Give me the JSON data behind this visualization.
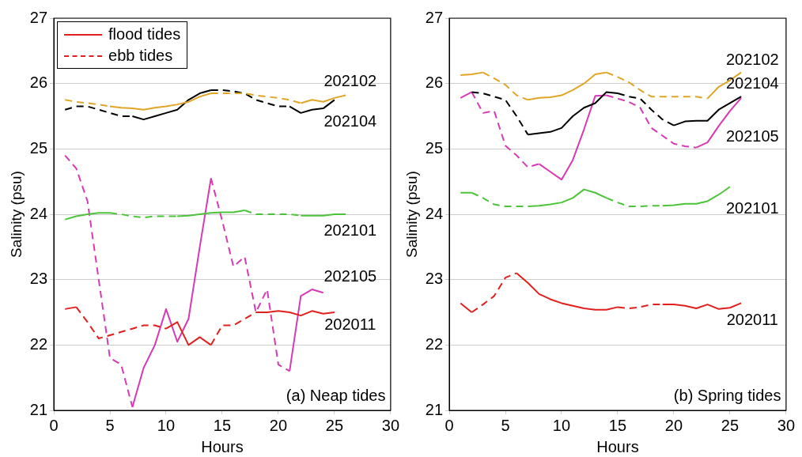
{
  "chart_data": [
    {
      "type": "line",
      "xlabel": "Hours",
      "ylabel": "Salinity (psu)",
      "xlim": [
        0,
        30
      ],
      "xticks": [
        0,
        5,
        10,
        15,
        20,
        25,
        30
      ],
      "ylim": [
        21,
        27
      ],
      "yticks": [
        21,
        22,
        23,
        24,
        25,
        26,
        27
      ],
      "grid": "y",
      "legend": "top left",
      "marker": "none",
      "annotations": [
        "(a) Neap tides",
        "202102",
        "202104",
        "202101",
        "202105",
        "202011"
      ],
      "series": [
        {
          "name": "flood tides",
          "color": "#e0201e",
          "line_style": "solid",
          "x": [
            1,
            2
          ],
          "values": [
            22.55,
            22.58
          ]
        },
        {
          "name": "ebb tides",
          "color": "#e0201e",
          "line_style": "dashed",
          "x": [
            2,
            3,
            4,
            5,
            6,
            7,
            8,
            9,
            10
          ],
          "values": [
            22.58,
            22.35,
            22.1,
            22.15,
            22.2,
            22.25,
            22.3,
            22.3,
            22.25
          ]
        },
        {
          "color": "#e0201e",
          "line_style": "solid",
          "x": [
            10,
            11,
            12,
            13,
            14
          ],
          "values": [
            22.25,
            22.35,
            22.0,
            22.12,
            22.0
          ]
        },
        {
          "color": "#e0201e",
          "line_style": "dashed",
          "x": [
            14,
            15,
            16,
            17,
            18
          ],
          "values": [
            22.0,
            22.3,
            22.3,
            22.4,
            22.5
          ]
        },
        {
          "color": "#e0201e",
          "line_style": "solid",
          "x": [
            18,
            19,
            20,
            21,
            22,
            23,
            24,
            25
          ],
          "values": [
            22.5,
            22.5,
            22.52,
            22.5,
            22.45,
            22.52,
            22.48,
            22.5
          ]
        },
        {
          "color": "#e0a526",
          "line_style": "dashed",
          "x": [
            1,
            2,
            3,
            4,
            5
          ],
          "values": [
            25.75,
            25.72,
            25.7,
            25.68,
            25.65
          ]
        },
        {
          "color": "#e0a526",
          "line_style": "solid",
          "x": [
            5,
            6,
            7,
            8,
            9,
            10,
            11,
            12,
            13,
            14
          ],
          "values": [
            25.65,
            25.63,
            25.62,
            25.6,
            25.63,
            25.65,
            25.68,
            25.72,
            25.8,
            25.85
          ]
        },
        {
          "color": "#e0a526",
          "line_style": "dashed",
          "x": [
            14,
            15,
            16,
            17,
            18,
            19,
            20,
            21,
            22
          ],
          "values": [
            25.85,
            25.85,
            25.85,
            25.85,
            25.82,
            25.8,
            25.78,
            25.75,
            25.7
          ]
        },
        {
          "color": "#e0a526",
          "line_style": "solid",
          "x": [
            22,
            23,
            24,
            25,
            26
          ],
          "values": [
            25.7,
            25.75,
            25.72,
            25.78,
            25.82
          ]
        },
        {
          "color": "#000000",
          "line_style": "dashed",
          "x": [
            1,
            2,
            3,
            4,
            5,
            6,
            7
          ],
          "values": [
            25.6,
            25.65,
            25.65,
            25.6,
            25.55,
            25.5,
            25.5
          ]
        },
        {
          "color": "#000000",
          "line_style": "solid",
          "x": [
            7,
            8,
            9,
            10,
            11,
            12,
            13,
            14
          ],
          "values": [
            25.5,
            25.45,
            25.5,
            25.55,
            25.6,
            25.75,
            25.85,
            25.9
          ]
        },
        {
          "color": "#000000",
          "line_style": "dashed",
          "x": [
            14,
            15,
            16,
            17,
            18,
            19,
            20,
            21
          ],
          "values": [
            25.9,
            25.9,
            25.88,
            25.85,
            25.75,
            25.7,
            25.65,
            25.65
          ]
        },
        {
          "color": "#000000",
          "line_style": "solid",
          "x": [
            21,
            22,
            23,
            24,
            25
          ],
          "values": [
            25.65,
            25.55,
            25.6,
            25.62,
            25.75
          ]
        },
        {
          "color": "#4cc43a",
          "line_style": "solid",
          "x": [
            1,
            2,
            3,
            4,
            5
          ],
          "values": [
            23.92,
            23.97,
            24.0,
            24.02,
            24.02
          ]
        },
        {
          "color": "#4cc43a",
          "line_style": "dashed",
          "x": [
            5,
            6,
            7,
            8,
            9,
            10,
            11
          ],
          "values": [
            24.02,
            24.0,
            23.97,
            23.95,
            23.97,
            23.97,
            23.97
          ]
        },
        {
          "color": "#4cc43a",
          "line_style": "solid",
          "x": [
            11,
            12,
            13,
            14,
            15,
            16,
            17
          ],
          "values": [
            23.97,
            23.98,
            24.0,
            24.02,
            24.03,
            24.03,
            24.06
          ]
        },
        {
          "color": "#4cc43a",
          "line_style": "dashed",
          "x": [
            17,
            18,
            19,
            20,
            21,
            22
          ],
          "values": [
            24.06,
            24.0,
            24.0,
            24.0,
            24.0,
            23.98
          ]
        },
        {
          "color": "#4cc43a",
          "line_style": "solid",
          "x": [
            22,
            23,
            24,
            25,
            26
          ],
          "values": [
            23.98,
            23.98,
            23.98,
            24.0,
            24.0
          ]
        },
        {
          "color": "#d63ab4",
          "line_style": "dashed",
          "x": [
            1,
            2,
            3,
            4,
            5,
            6,
            7
          ],
          "values": [
            24.9,
            24.7,
            24.2,
            23.0,
            21.8,
            21.7,
            21.05
          ]
        },
        {
          "color": "#d63ab4",
          "line_style": "solid",
          "x": [
            7,
            8,
            9,
            10,
            11,
            12,
            13,
            14
          ],
          "values": [
            21.05,
            21.65,
            22.0,
            22.55,
            22.05,
            22.4,
            23.5,
            24.55
          ]
        },
        {
          "color": "#d63ab4",
          "line_style": "dashed",
          "x": [
            14,
            15,
            16,
            17,
            18,
            19,
            20,
            21
          ],
          "values": [
            24.55,
            23.9,
            23.2,
            23.35,
            22.5,
            22.85,
            21.7,
            21.6
          ]
        },
        {
          "color": "#d63ab4",
          "line_style": "solid",
          "x": [
            21,
            22,
            23,
            24
          ],
          "values": [
            21.6,
            22.75,
            22.85,
            22.8
          ]
        }
      ]
    },
    {
      "type": "line",
      "xlabel": "Hours",
      "ylabel": "Salinity (psu)",
      "xlim": [
        0,
        30
      ],
      "xticks": [
        0,
        5,
        10,
        15,
        20,
        25,
        30
      ],
      "ylim": [
        21,
        27
      ],
      "yticks": [
        21,
        22,
        23,
        24,
        25,
        26,
        27
      ],
      "grid": "y",
      "marker": "none",
      "annotations": [
        "(b) Spring tides",
        "202102",
        "202104",
        "202105",
        "202101",
        "202011"
      ],
      "series": [
        {
          "color": "#e0201e",
          "line_style": "solid",
          "x": [
            1,
            2
          ],
          "values": [
            22.64,
            22.5
          ]
        },
        {
          "color": "#e0201e",
          "line_style": "dashed",
          "x": [
            2,
            3,
            4,
            5,
            6
          ],
          "values": [
            22.5,
            22.62,
            22.75,
            23.03,
            23.1
          ]
        },
        {
          "color": "#e0201e",
          "line_style": "solid",
          "x": [
            6,
            7,
            8,
            9,
            10,
            11,
            12,
            13,
            14,
            15
          ],
          "values": [
            23.1,
            22.95,
            22.78,
            22.7,
            22.64,
            22.6,
            22.56,
            22.54,
            22.54,
            22.58
          ]
        },
        {
          "color": "#e0201e",
          "line_style": "dashed",
          "x": [
            15,
            16,
            17,
            18,
            19
          ],
          "values": [
            22.58,
            22.56,
            22.58,
            22.62,
            22.62
          ]
        },
        {
          "color": "#e0201e",
          "line_style": "solid",
          "x": [
            19,
            20,
            21,
            22,
            23,
            24,
            25,
            26
          ],
          "values": [
            22.62,
            22.62,
            22.6,
            22.56,
            22.62,
            22.55,
            22.57,
            22.64
          ]
        },
        {
          "color": "#e0a526",
          "line_style": "solid",
          "x": [
            1,
            2,
            3
          ],
          "values": [
            26.13,
            26.14,
            26.17
          ]
        },
        {
          "color": "#e0a526",
          "line_style": "dashed",
          "x": [
            3,
            4,
            5,
            6,
            7
          ],
          "values": [
            26.17,
            26.08,
            25.98,
            25.82,
            25.75
          ]
        },
        {
          "color": "#e0a526",
          "line_style": "solid",
          "x": [
            7,
            8,
            9,
            10,
            11,
            12,
            13,
            14
          ],
          "values": [
            25.75,
            25.78,
            25.79,
            25.82,
            25.9,
            26.0,
            26.14,
            26.17
          ]
        },
        {
          "color": "#e0a526",
          "line_style": "dashed",
          "x": [
            14,
            15,
            16,
            17,
            18,
            19,
            20,
            21,
            22,
            23
          ],
          "values": [
            26.17,
            26.1,
            26.02,
            25.9,
            25.8,
            25.8,
            25.8,
            25.8,
            25.8,
            25.77
          ]
        },
        {
          "color": "#e0a526",
          "line_style": "solid",
          "x": [
            23,
            24,
            25,
            26
          ],
          "values": [
            25.77,
            25.95,
            26.05,
            26.17
          ]
        },
        {
          "color": "#000000",
          "line_style": "dashed",
          "x": [
            2,
            3,
            4,
            5,
            6,
            7
          ],
          "values": [
            25.87,
            25.85,
            25.8,
            25.75,
            25.5,
            25.22
          ]
        },
        {
          "color": "#000000",
          "line_style": "solid",
          "x": [
            7,
            8,
            9,
            10,
            11,
            12,
            13,
            14,
            15
          ],
          "values": [
            25.22,
            25.24,
            25.26,
            25.32,
            25.5,
            25.63,
            25.7,
            25.87,
            25.85
          ]
        },
        {
          "color": "#000000",
          "line_style": "dashed",
          "x": [
            15,
            16,
            17,
            18,
            19,
            20
          ],
          "values": [
            25.85,
            25.8,
            25.77,
            25.6,
            25.45,
            25.36
          ]
        },
        {
          "color": "#000000",
          "line_style": "solid",
          "x": [
            20,
            21,
            22,
            23,
            24,
            25,
            26
          ],
          "values": [
            25.36,
            25.42,
            25.43,
            25.43,
            25.6,
            25.7,
            25.8
          ]
        },
        {
          "color": "#d63ab4",
          "line_style": "solid",
          "x": [
            1,
            2
          ],
          "values": [
            25.78,
            25.87
          ]
        },
        {
          "color": "#d63ab4",
          "line_style": "dashed",
          "x": [
            2,
            3,
            4,
            5,
            6,
            7,
            8
          ],
          "values": [
            25.87,
            25.55,
            25.58,
            25.05,
            24.9,
            24.72,
            24.77
          ]
        },
        {
          "color": "#d63ab4",
          "line_style": "solid",
          "x": [
            8,
            9,
            10,
            11,
            12,
            13,
            14
          ],
          "values": [
            24.77,
            24.65,
            24.53,
            24.83,
            25.3,
            25.81,
            25.82
          ]
        },
        {
          "color": "#d63ab4",
          "line_style": "dashed",
          "x": [
            14,
            15,
            16,
            17,
            18,
            19,
            20,
            21,
            22
          ],
          "values": [
            25.82,
            25.77,
            25.72,
            25.63,
            25.32,
            25.2,
            25.08,
            25.04,
            25.02
          ]
        },
        {
          "color": "#d63ab4",
          "line_style": "solid",
          "x": [
            22,
            23,
            24,
            25,
            26
          ],
          "values": [
            25.02,
            25.1,
            25.35,
            25.58,
            25.78
          ]
        },
        {
          "color": "#4cc43a",
          "line_style": "solid",
          "x": [
            1,
            2
          ],
          "values": [
            24.33,
            24.33
          ]
        },
        {
          "color": "#4cc43a",
          "line_style": "dashed",
          "x": [
            2,
            3,
            4,
            5,
            6,
            7
          ],
          "values": [
            24.33,
            24.25,
            24.15,
            24.12,
            24.12,
            24.12
          ]
        },
        {
          "color": "#4cc43a",
          "line_style": "solid",
          "x": [
            7,
            8,
            9,
            10,
            11,
            12,
            13,
            14
          ],
          "values": [
            24.12,
            24.13,
            24.15,
            24.18,
            24.25,
            24.38,
            24.33,
            24.25
          ]
        },
        {
          "color": "#4cc43a",
          "line_style": "dashed",
          "x": [
            14,
            15,
            16,
            17,
            18,
            19
          ],
          "values": [
            24.25,
            24.18,
            24.12,
            24.12,
            24.13,
            24.13
          ]
        },
        {
          "color": "#4cc43a",
          "line_style": "solid",
          "x": [
            19,
            20,
            21,
            22,
            23,
            24,
            25
          ],
          "values": [
            24.13,
            24.14,
            24.16,
            24.16,
            24.2,
            24.3,
            24.42
          ]
        }
      ]
    }
  ]
}
